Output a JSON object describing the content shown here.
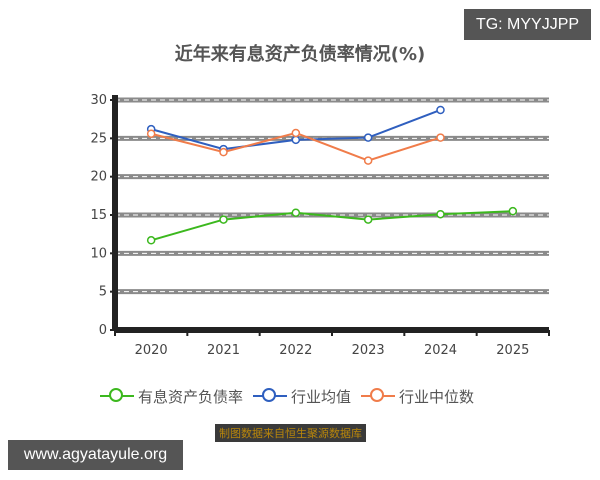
{
  "badges": {
    "tg": "TG: MYYJJPP",
    "url": "www.agyatayule.org"
  },
  "source": "制图数据来自恒生聚源数据库",
  "colors": {
    "series_green": "#3cb81e",
    "series_blue": "#2f5fbf",
    "series_orange": "#f07c4a",
    "grid": "#888888",
    "axis": "#222222"
  },
  "chart_data": {
    "type": "line",
    "title": "近年来有息资产负债率情况(%)",
    "xlabel": "",
    "ylabel": "",
    "categories": [
      "2020",
      "2021",
      "2022",
      "2023",
      "2024",
      "2025"
    ],
    "ylim": [
      0,
      30
    ],
    "yticks": [
      "0",
      "5",
      "10",
      "15",
      "20",
      "25",
      "30"
    ],
    "grid": true,
    "legend_position": "bottom",
    "series": [
      {
        "name": "有息资产负债率",
        "color": "#3cb81e",
        "values": [
          11.7,
          14.4,
          15.3,
          14.4,
          15.1,
          15.5
        ]
      },
      {
        "name": "行业均值",
        "color": "#2f5fbf",
        "values": [
          26.2,
          23.6,
          24.8,
          25.1,
          28.7,
          null
        ]
      },
      {
        "name": "行业中位数",
        "color": "#f07c4a",
        "values": [
          25.6,
          23.2,
          25.7,
          22.1,
          25.1,
          null
        ]
      }
    ]
  }
}
